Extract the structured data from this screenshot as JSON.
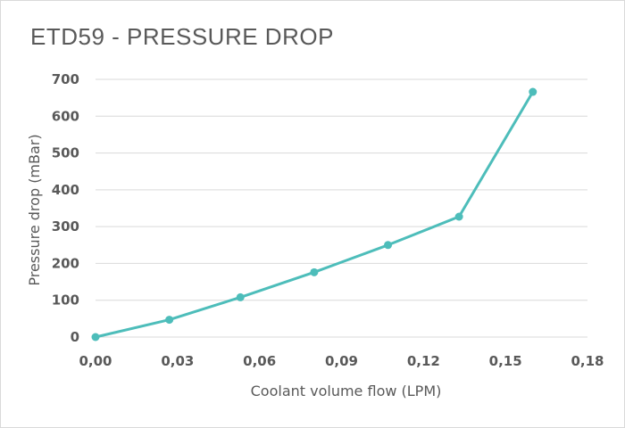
{
  "chart_data": {
    "type": "line",
    "title": "ETD59 - PRESSURE DROP",
    "xlabel": "Coolant volume flow (LPM)",
    "ylabel": "Pressure drop (mBar)",
    "xlim": [
      0,
      0.18
    ],
    "ylim": [
      0,
      700
    ],
    "x_ticks": [
      "0,00",
      "0,03",
      "0,06",
      "0,09",
      "0,12",
      "0,15",
      "0,18"
    ],
    "y_ticks": [
      "0",
      "100",
      "200",
      "300",
      "400",
      "500",
      "600",
      "700"
    ],
    "grid": "horizontal",
    "legend": "none",
    "series": [
      {
        "color": "#4dbdba",
        "x": [
          0.0,
          0.027,
          0.053,
          0.08,
          0.107,
          0.133,
          0.16
        ],
        "y": [
          0,
          47,
          108,
          176,
          250,
          327,
          666
        ]
      }
    ]
  }
}
